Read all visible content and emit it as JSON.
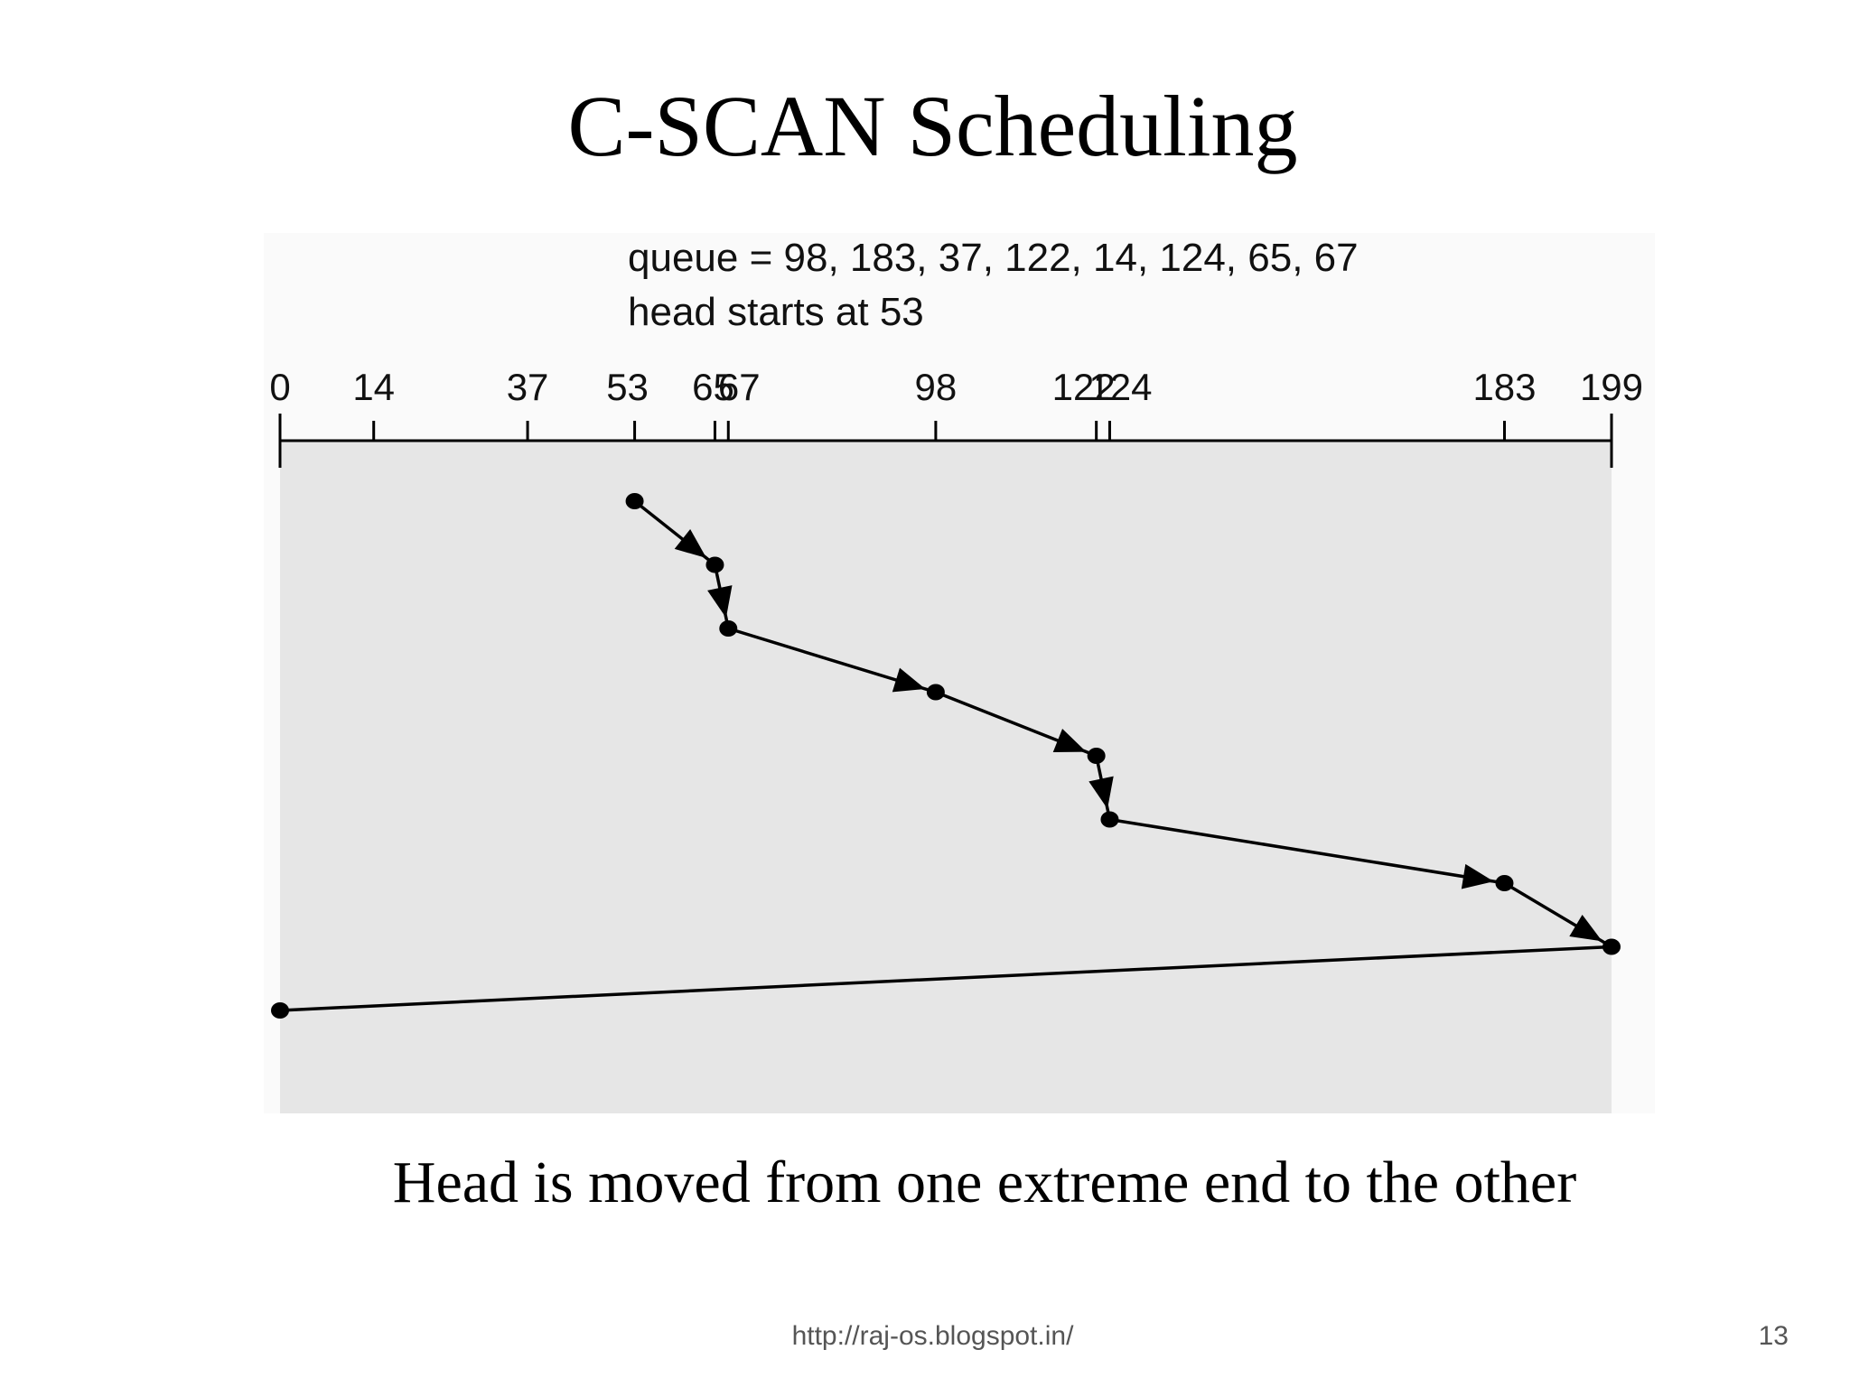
{
  "slide": {
    "title": "C-SCAN Scheduling",
    "caption": "Head is moved from one extreme end to the other",
    "footer_url": "http://raj-os.blogspot.in/",
    "page_number": "13"
  },
  "figure": {
    "queue_line": "queue = 98, 183, 37, 122, 14, 124, 65, 67",
    "head_line": "head starts at 53",
    "tracks": [
      0,
      14,
      37,
      53,
      65,
      67,
      98,
      122,
      124,
      183,
      199
    ],
    "track_range": [
      0,
      199
    ],
    "head_path": [
      53,
      65,
      67,
      98,
      122,
      124,
      183,
      199,
      0
    ],
    "colors": {
      "plot_background": "#e6e6e6",
      "ink": "#000000"
    }
  }
}
